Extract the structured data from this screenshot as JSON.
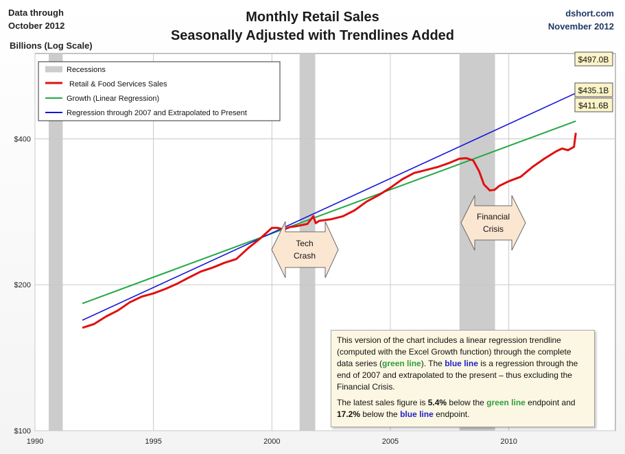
{
  "header": {
    "note_line1": "Data through",
    "note_line2": "October 2012",
    "title_line1": "Monthly Retail Sales",
    "title_line2": "Seasonally Adjusted with Trendlines Added",
    "source_line1": "dshort.com",
    "source_line2": "November 2012",
    "y_unit": "Billions (Log Scale)"
  },
  "legend": {
    "recessions": "Recessions",
    "retail": "Retail & Food Services Sales",
    "growth": "Growth (Linear Regression)",
    "regression": "Regression through 2007 and Extrapolated to Present"
  },
  "annotations": {
    "tech_crash_1": "Tech",
    "tech_crash_2": "Crash",
    "financial_crisis_1": "Financial",
    "financial_crisis_2": "Crisis"
  },
  "end_labels": {
    "blue": "$497.0B",
    "green": "$435.1B",
    "red": "$411.6B"
  },
  "info": {
    "p1_a": "This version of the chart includes a linear regression trendline (computed with the Excel Growth function) through the complete data series (",
    "p1_green": "green line",
    "p1_b": "). The ",
    "p1_blue": "blue line",
    "p1_c": " is a regression through the end of 2007 and extrapolated to the present – thus excluding the Financial Crisis.",
    "p2_a": "The latest sales figure is ",
    "p2_pct1": "5.4%",
    "p2_b": " below the ",
    "p2_green": "green line",
    "p2_c": " endpoint and ",
    "p2_pct2": "17.2%",
    "p2_d": " below the ",
    "p2_blue": "blue line",
    "p2_e": " endpoint."
  },
  "colors": {
    "retail": "#e01010",
    "growth": "#22a844",
    "regression": "#1414dc",
    "recession": "#cccccc",
    "label_bg": "#fbf4c8",
    "arrow_bg": "#fbe6d2"
  },
  "chart_data": {
    "type": "line",
    "x_scale": "time",
    "y_scale": "log",
    "xlim": [
      1990,
      2014.5
    ],
    "ylim": [
      100,
      600
    ],
    "x_ticks": [
      1990,
      1995,
      2000,
      2005,
      2010
    ],
    "y_ticks": [
      {
        "value": 100,
        "label": "$100"
      },
      {
        "value": 200,
        "label": "$200"
      },
      {
        "value": 400,
        "label": "$400"
      }
    ],
    "grid": {
      "vertical": true,
      "horizontal": true
    },
    "legend_position": "top-left",
    "recessions": [
      {
        "start": 1990.58,
        "end": 1991.17
      },
      {
        "start": 2001.17,
        "end": 2001.83
      },
      {
        "start": 2007.92,
        "end": 2009.42
      }
    ],
    "series": [
      {
        "name": "Retail & Food Services Sales",
        "points": [
          [
            1992.0,
            163
          ],
          [
            1992.5,
            166
          ],
          [
            1993.0,
            172
          ],
          [
            1993.5,
            177
          ],
          [
            1994.0,
            184
          ],
          [
            1994.5,
            189
          ],
          [
            1995.0,
            192
          ],
          [
            1995.5,
            196
          ],
          [
            1996.0,
            201
          ],
          [
            1996.5,
            207
          ],
          [
            1997.0,
            213
          ],
          [
            1997.5,
            217
          ],
          [
            1998.0,
            222
          ],
          [
            1998.5,
            226
          ],
          [
            1999.0,
            238
          ],
          [
            1999.5,
            249
          ],
          [
            2000.0,
            262
          ],
          [
            2000.25,
            262
          ],
          [
            2000.5,
            260
          ],
          [
            2000.75,
            263
          ],
          [
            2001.0,
            264
          ],
          [
            2001.5,
            267
          ],
          [
            2001.75,
            277
          ],
          [
            2001.85,
            268
          ],
          [
            2002.0,
            271
          ],
          [
            2002.5,
            273
          ],
          [
            2003.0,
            277
          ],
          [
            2003.5,
            285
          ],
          [
            2004.0,
            297
          ],
          [
            2004.5,
            306
          ],
          [
            2005.0,
            317
          ],
          [
            2005.5,
            330
          ],
          [
            2006.0,
            340
          ],
          [
            2006.5,
            345
          ],
          [
            2007.0,
            350
          ],
          [
            2007.5,
            357
          ],
          [
            2007.92,
            364
          ],
          [
            2008.2,
            365
          ],
          [
            2008.5,
            361
          ],
          [
            2008.75,
            343
          ],
          [
            2008.95,
            322
          ],
          [
            2009.2,
            313
          ],
          [
            2009.4,
            314
          ],
          [
            2009.6,
            320
          ],
          [
            2010.0,
            327
          ],
          [
            2010.5,
            334
          ],
          [
            2011.0,
            350
          ],
          [
            2011.5,
            364
          ],
          [
            2012.0,
            377
          ],
          [
            2012.25,
            382
          ],
          [
            2012.5,
            379
          ],
          [
            2012.75,
            385
          ],
          [
            2012.83,
            411.6
          ]
        ]
      },
      {
        "name": "Growth (Linear Regression)",
        "points": [
          [
            1992.0,
            183
          ],
          [
            2012.83,
            435.1
          ]
        ]
      },
      {
        "name": "Regression through 2007 and Extrapolated to Present",
        "points": [
          [
            1992.0,
            169
          ],
          [
            2012.83,
            497.0
          ]
        ]
      }
    ]
  }
}
